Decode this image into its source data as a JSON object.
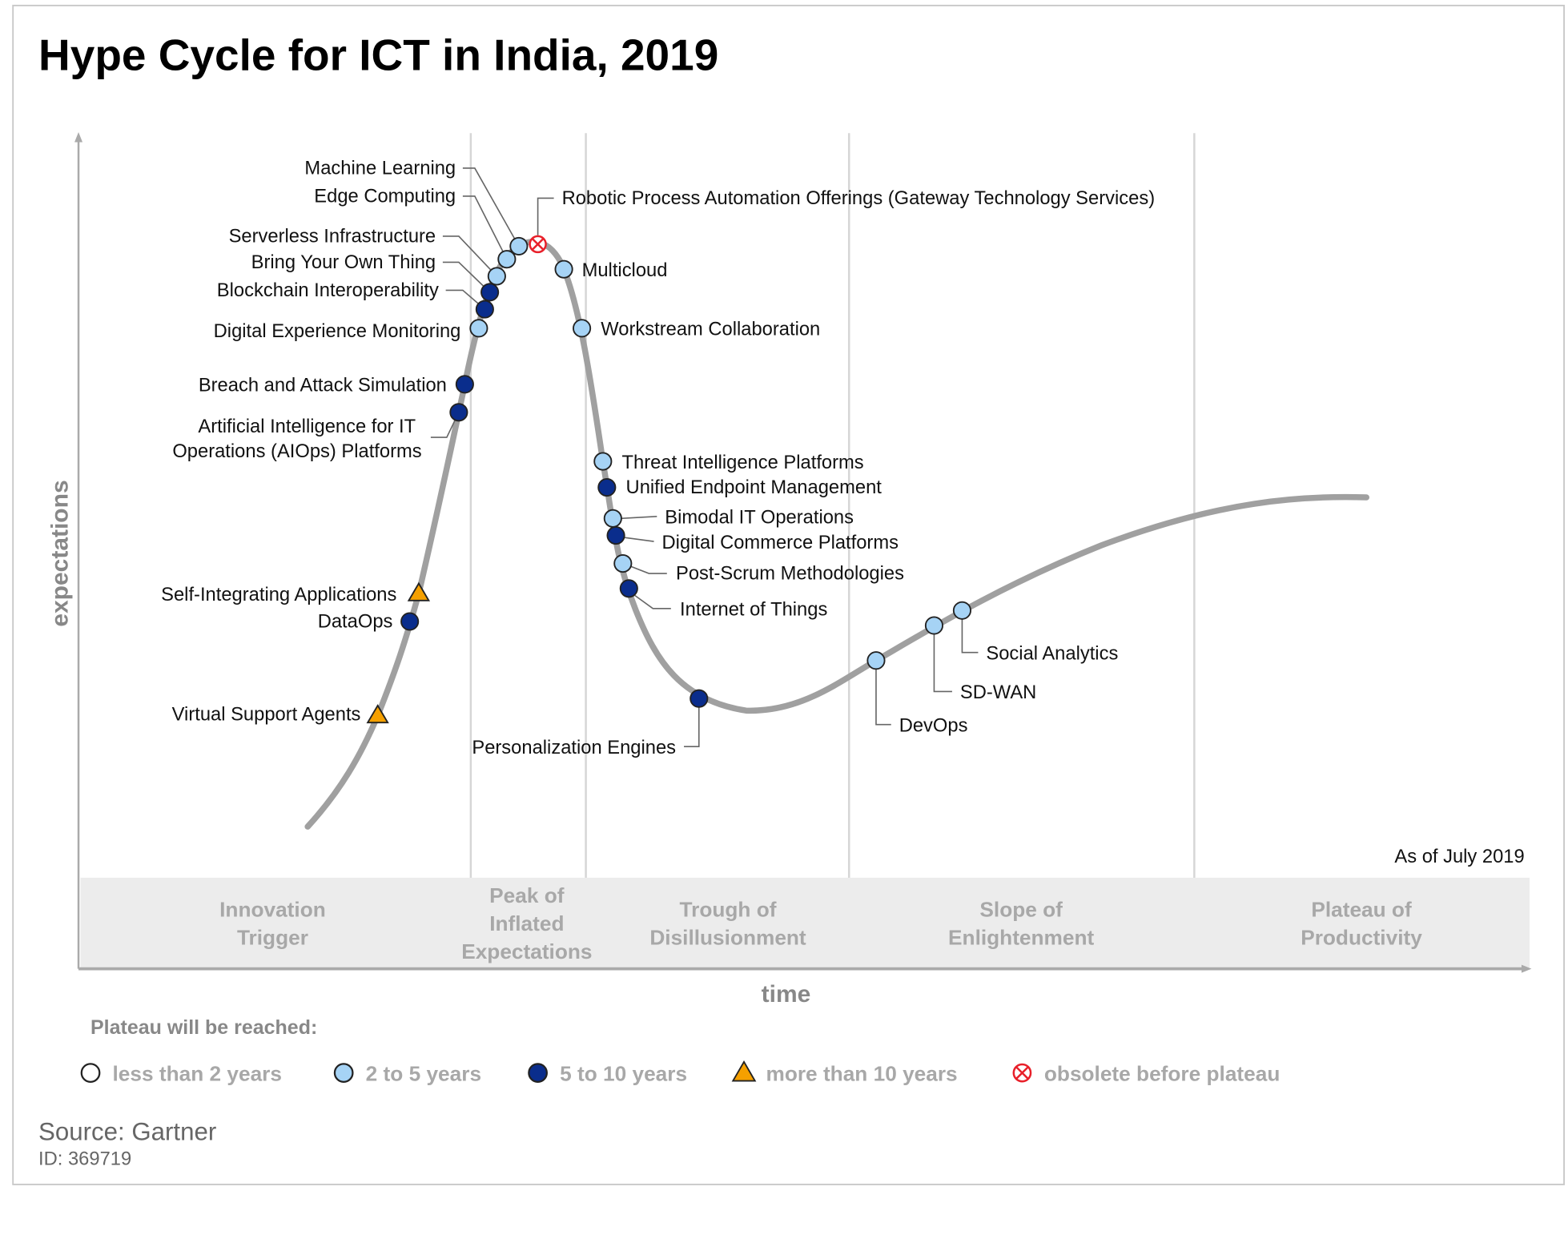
{
  "chart_data": {
    "type": "scatter",
    "title": "Hype Cycle for ICT in India, 2019",
    "xlabel": "time",
    "ylabel": "expectations",
    "as_of": "As of July 2019",
    "phases": [
      "Innovation Trigger",
      "Peak of Inflated Expectations",
      "Trough of Disillusionment",
      "Slope of Enlightenment",
      "Plateau of Productivity"
    ],
    "legend_title": "Plateau will be reached:",
    "legend": [
      {
        "key": "lt2",
        "label": "less than 2 years",
        "color": "#ffffff",
        "shape": "circle"
      },
      {
        "key": "2to5",
        "label": "2 to 5 years",
        "color": "#a6d3f5",
        "shape": "circle"
      },
      {
        "key": "5to10",
        "label": "5 to 10 years",
        "color": "#0a2d8c",
        "shape": "circle"
      },
      {
        "key": "gt10",
        "label": "more than 10 years",
        "color": "#f5a000",
        "shape": "triangle"
      },
      {
        "key": "obsolete",
        "label": "obsolete before plateau",
        "color": "#e8202a",
        "shape": "crossed-circle"
      }
    ],
    "items": [
      {
        "name": "Machine Learning",
        "plateau": "2to5"
      },
      {
        "name": "Edge Computing",
        "plateau": "2to5"
      },
      {
        "name": "Serverless Infrastructure",
        "plateau": "2to5"
      },
      {
        "name": "Bring Your Own Thing",
        "plateau": "5to10"
      },
      {
        "name": "Blockchain Interoperability",
        "plateau": "5to10"
      },
      {
        "name": "Digital Experience Monitoring",
        "plateau": "2to5"
      },
      {
        "name": "Breach and Attack Simulation",
        "plateau": "5to10"
      },
      {
        "name": "Artificial Intelligence for IT|Operations (AIOps) Platforms",
        "plateau": "5to10"
      },
      {
        "name": "Self-Integrating Applications",
        "plateau": "gt10"
      },
      {
        "name": "DataOps",
        "plateau": "5to10"
      },
      {
        "name": "Virtual Support Agents",
        "plateau": "gt10"
      },
      {
        "name": "Robotic Process Automation Offerings (Gateway Technology Services)",
        "plateau": "obsolete"
      },
      {
        "name": "Multicloud",
        "plateau": "2to5"
      },
      {
        "name": "Workstream Collaboration",
        "plateau": "2to5"
      },
      {
        "name": "Threat Intelligence Platforms",
        "plateau": "2to5"
      },
      {
        "name": "Unified Endpoint Management",
        "plateau": "5to10"
      },
      {
        "name": "Bimodal IT Operations",
        "plateau": "2to5"
      },
      {
        "name": "Digital Commerce Platforms",
        "plateau": "5to10"
      },
      {
        "name": "Post-Scrum Methodologies",
        "plateau": "2to5"
      },
      {
        "name": "Internet of Things",
        "plateau": "5to10"
      },
      {
        "name": "Personalization Engines",
        "plateau": "5to10"
      },
      {
        "name": "DevOps",
        "plateau": "2to5"
      },
      {
        "name": "SD-WAN",
        "plateau": "2to5"
      },
      {
        "name": "Social Analytics",
        "plateau": "2to5"
      }
    ]
  },
  "footer": {
    "source": "Source: Gartner",
    "id": "ID: 369719"
  }
}
